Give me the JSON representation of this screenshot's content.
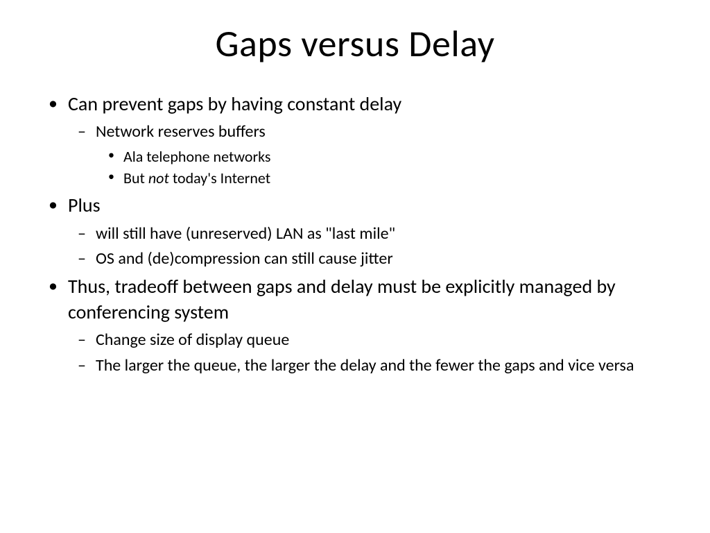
{
  "title": "Gaps versus Delay",
  "b1": "Can prevent gaps by having constant delay",
  "b1_1": "Network reserves buffers",
  "b1_1_1": "Ala telephone networks",
  "b1_1_2a": "But ",
  "b1_1_2b": "not",
  "b1_1_2c": " today's Internet",
  "b2": "Plus",
  "b2_1": "will still have (unreserved) LAN as \"last mile\"",
  "b2_2": "OS and (de)compression can still cause jitter",
  "b3": "Thus, tradeoff between gaps and delay must be explicitly managed by conferencing system",
  "b3_1": "Change size of display queue",
  "b3_2": "The larger the queue, the larger the delay and the fewer the gaps and vice versa",
  "style": {
    "background": "#ffffff",
    "text_color": "#000000",
    "title_fontsize": 54,
    "level1_fontsize": 28,
    "level2_fontsize": 24,
    "level3_fontsize": 22,
    "font_family": "Calibri"
  }
}
